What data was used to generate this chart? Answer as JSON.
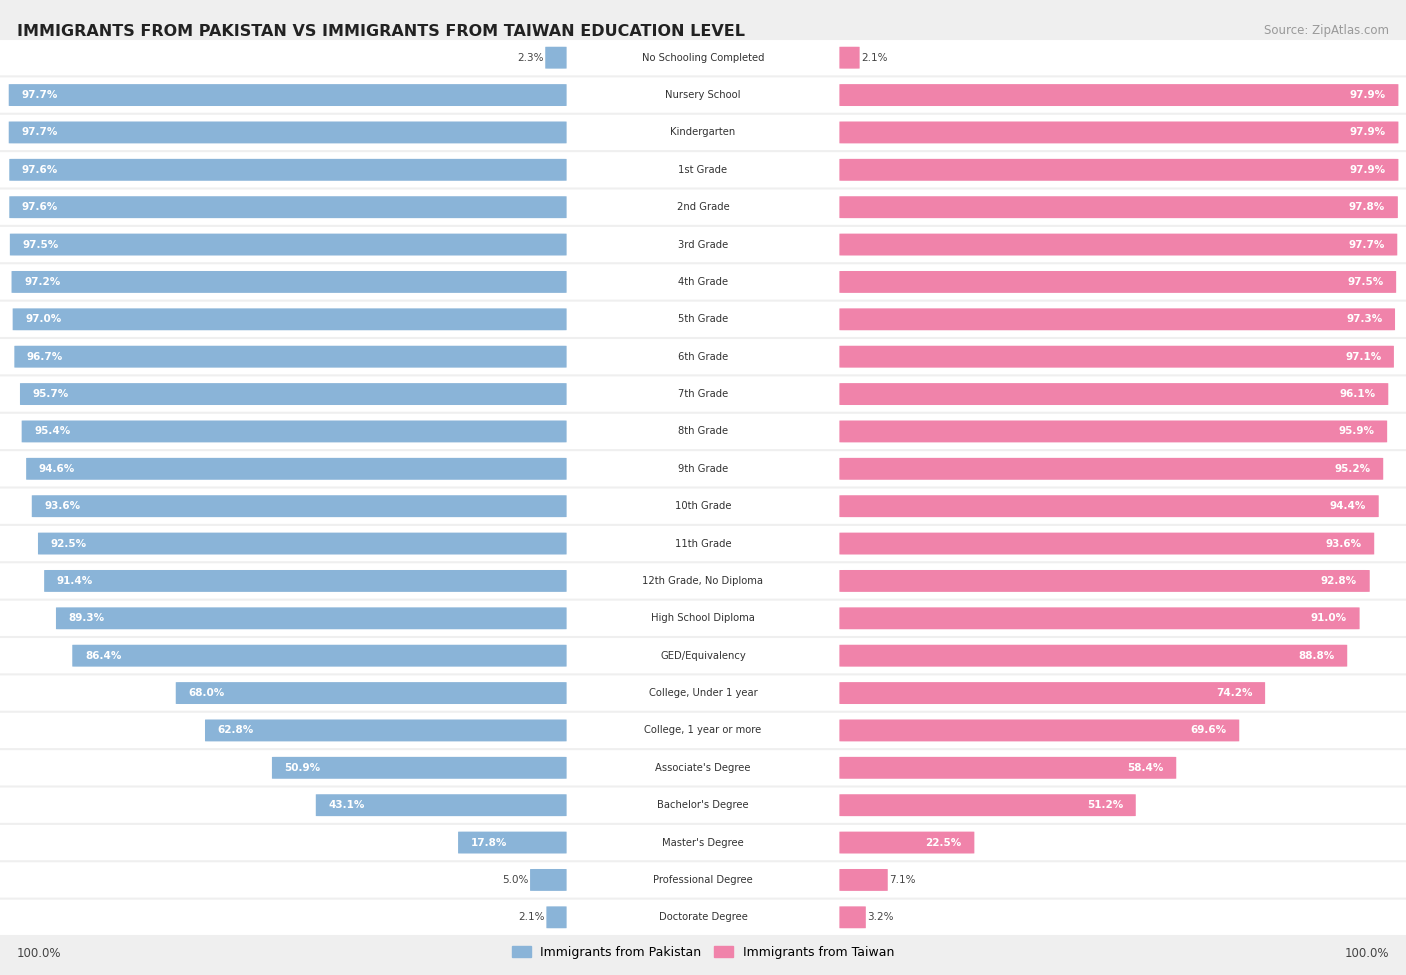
{
  "title": "IMMIGRANTS FROM PAKISTAN VS IMMIGRANTS FROM TAIWAN EDUCATION LEVEL",
  "source": "Source: ZipAtlas.com",
  "categories": [
    "No Schooling Completed",
    "Nursery School",
    "Kindergarten",
    "1st Grade",
    "2nd Grade",
    "3rd Grade",
    "4th Grade",
    "5th Grade",
    "6th Grade",
    "7th Grade",
    "8th Grade",
    "9th Grade",
    "10th Grade",
    "11th Grade",
    "12th Grade, No Diploma",
    "High School Diploma",
    "GED/Equivalency",
    "College, Under 1 year",
    "College, 1 year or more",
    "Associate's Degree",
    "Bachelor's Degree",
    "Master's Degree",
    "Professional Degree",
    "Doctorate Degree"
  ],
  "pakistan_values": [
    2.3,
    97.7,
    97.7,
    97.6,
    97.6,
    97.5,
    97.2,
    97.0,
    96.7,
    95.7,
    95.4,
    94.6,
    93.6,
    92.5,
    91.4,
    89.3,
    86.4,
    68.0,
    62.8,
    50.9,
    43.1,
    17.8,
    5.0,
    2.1
  ],
  "taiwan_values": [
    2.1,
    97.9,
    97.9,
    97.9,
    97.8,
    97.7,
    97.5,
    97.3,
    97.1,
    96.1,
    95.9,
    95.2,
    94.4,
    93.6,
    92.8,
    91.0,
    88.8,
    74.2,
    69.6,
    58.4,
    51.2,
    22.5,
    7.1,
    3.2
  ],
  "pakistan_color": "#8ab4d8",
  "taiwan_color": "#f083aa",
  "background_color": "#efefef",
  "bar_background_color": "#ffffff",
  "row_bg_color": "#ffffff",
  "legend_pakistan": "Immigrants from Pakistan",
  "legend_taiwan": "Immigrants from Taiwan",
  "fig_width": 14.06,
  "fig_height": 9.75
}
